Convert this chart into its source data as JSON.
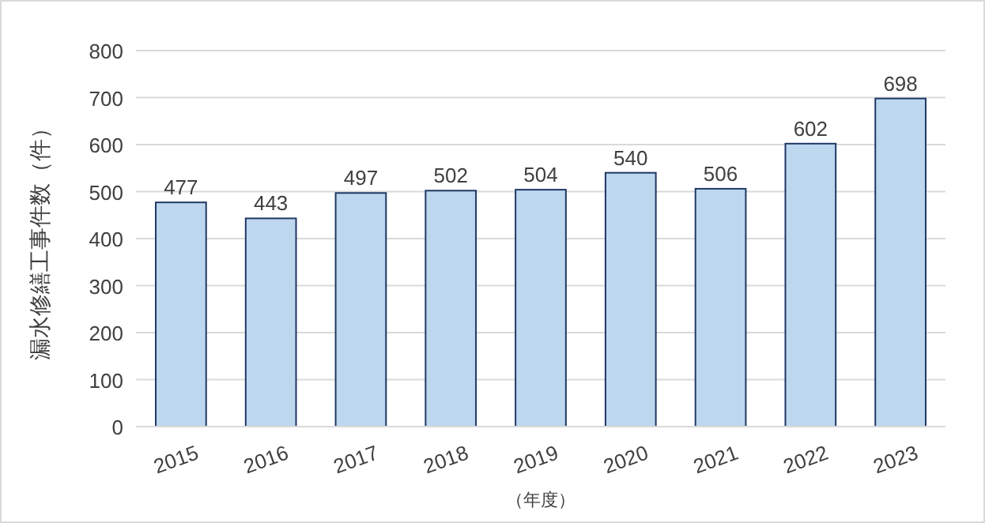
{
  "chart_data": {
    "type": "bar",
    "xlabel": "（年度）",
    "ylabel": "漏水修繕工事件数（件）",
    "categories": [
      "2015",
      "2016",
      "2017",
      "2018",
      "2019",
      "2020",
      "2021",
      "2022",
      "2023"
    ],
    "values": [
      477,
      443,
      497,
      502,
      504,
      540,
      506,
      602,
      698
    ],
    "color": "#bdd7ee",
    "ylim": [
      0,
      800
    ],
    "yticks": [
      0,
      100,
      200,
      300,
      400,
      500,
      600,
      700,
      800
    ],
    "grid": "y",
    "data_labels": true
  }
}
